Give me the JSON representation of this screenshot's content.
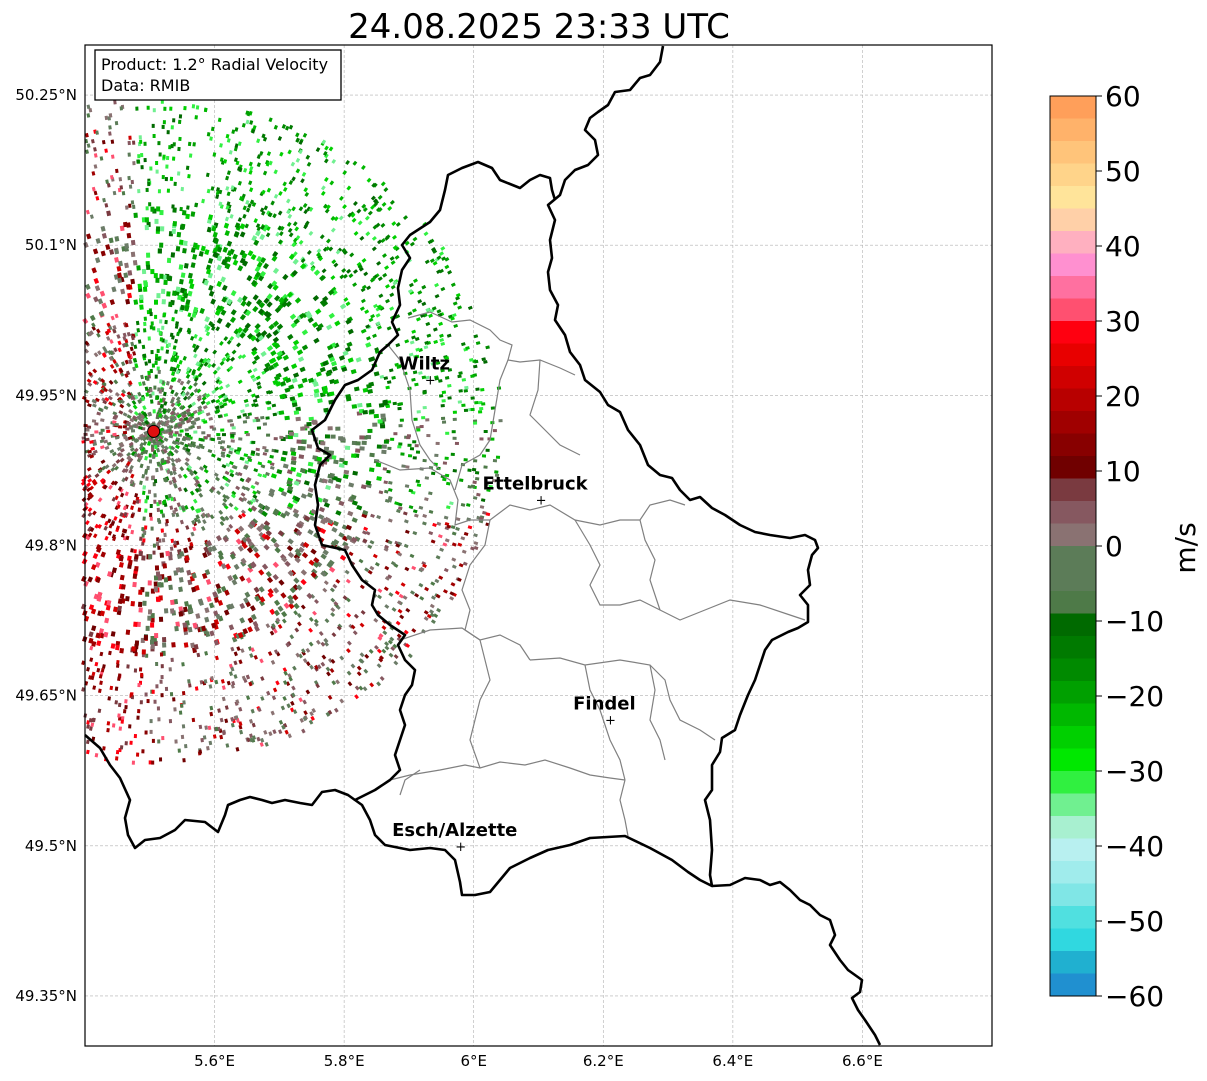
{
  "title": "24.08.2025 23:33 UTC",
  "info_box": {
    "line1": "Product: 1.2° Radial Velocity",
    "line2": "Data: RMIB"
  },
  "map": {
    "lon_range": [
      5.4,
      6.8
    ],
    "lat_range": [
      49.3,
      50.3
    ],
    "lon_ticks": [
      {
        "value": 5.6,
        "label": "5.6°E"
      },
      {
        "value": 5.8,
        "label": "5.8°E"
      },
      {
        "value": 6.0,
        "label": "6°E"
      },
      {
        "value": 6.2,
        "label": "6.2°E"
      },
      {
        "value": 6.4,
        "label": "6.4°E"
      },
      {
        "value": 6.6,
        "label": "6.6°E"
      }
    ],
    "lat_ticks": [
      {
        "value": 50.25,
        "label": "50.25°N"
      },
      {
        "value": 50.1,
        "label": "50.1°N"
      },
      {
        "value": 49.95,
        "label": "49.95°N"
      },
      {
        "value": 49.8,
        "label": "49.8°N"
      },
      {
        "value": 49.65,
        "label": "49.65°N"
      },
      {
        "value": 49.5,
        "label": "49.5°N"
      },
      {
        "value": 49.35,
        "label": "49.35°N"
      }
    ],
    "radar_site": {
      "lon": 5.506,
      "lat": 49.914
    },
    "cities": [
      {
        "name": "Wiltz",
        "lon": 5.933,
        "lat": 49.966
      },
      {
        "name": "Ettelbruck",
        "lon": 6.104,
        "lat": 49.846
      },
      {
        "name": "Findel",
        "lon": 6.211,
        "lat": 49.626
      },
      {
        "name": "Esch/Alzette",
        "lon": 5.98,
        "lat": 49.5
      }
    ],
    "grid": true
  },
  "colorbar": {
    "label": "m/s",
    "range": [
      -60,
      60
    ],
    "ticks": [
      {
        "value": 60,
        "label": "60"
      },
      {
        "value": 50,
        "label": "50"
      },
      {
        "value": 40,
        "label": "40"
      },
      {
        "value": 30,
        "label": "30"
      },
      {
        "value": 20,
        "label": "20"
      },
      {
        "value": 10,
        "label": "10"
      },
      {
        "value": 0,
        "label": "0"
      },
      {
        "value": -10,
        "label": "−10"
      },
      {
        "value": -20,
        "label": "−20"
      },
      {
        "value": -30,
        "label": "−30"
      },
      {
        "value": -40,
        "label": "−40"
      },
      {
        "value": -50,
        "label": "−50"
      },
      {
        "value": -60,
        "label": "−60"
      }
    ],
    "bands": [
      {
        "from": 57,
        "to": 60,
        "color": "#ff9f5a"
      },
      {
        "from": 54,
        "to": 57,
        "color": "#ffb26a"
      },
      {
        "from": 51,
        "to": 54,
        "color": "#ffc47a"
      },
      {
        "from": 48,
        "to": 51,
        "color": "#ffd48a"
      },
      {
        "from": 45,
        "to": 48,
        "color": "#ffe49a"
      },
      {
        "from": 42,
        "to": 45,
        "color": "#ffd0a8"
      },
      {
        "from": 39,
        "to": 42,
        "color": "#ffb0c0"
      },
      {
        "from": 36,
        "to": 39,
        "color": "#ff90d0"
      },
      {
        "from": 33,
        "to": 36,
        "color": "#ff70a0"
      },
      {
        "from": 30,
        "to": 33,
        "color": "#ff5070"
      },
      {
        "from": 27,
        "to": 30,
        "color": "#ff0010"
      },
      {
        "from": 24,
        "to": 27,
        "color": "#e80000"
      },
      {
        "from": 21,
        "to": 24,
        "color": "#d00000"
      },
      {
        "from": 18,
        "to": 21,
        "color": "#b80000"
      },
      {
        "from": 15,
        "to": 18,
        "color": "#a00000"
      },
      {
        "from": 12,
        "to": 15,
        "color": "#880000"
      },
      {
        "from": 9,
        "to": 12,
        "color": "#700000"
      },
      {
        "from": 6,
        "to": 9,
        "color": "#7a3a40"
      },
      {
        "from": 3,
        "to": 6,
        "color": "#865860"
      },
      {
        "from": 0,
        "to": 3,
        "color": "#8a7272"
      },
      {
        "from": -3,
        "to": 0,
        "color": "#6c7c68"
      },
      {
        "from": -6,
        "to": 0,
        "color": "#5c7c58"
      },
      {
        "from": -9,
        "to": -6,
        "color": "#4e7a48"
      },
      {
        "from": -12,
        "to": -9,
        "color": "#006a00"
      },
      {
        "from": -15,
        "to": -12,
        "color": "#007a00"
      },
      {
        "from": -18,
        "to": -15,
        "color": "#008a00"
      },
      {
        "from": -21,
        "to": -18,
        "color": "#00a000"
      },
      {
        "from": -24,
        "to": -21,
        "color": "#00b800"
      },
      {
        "from": -27,
        "to": -24,
        "color": "#00d000"
      },
      {
        "from": -30,
        "to": -27,
        "color": "#00e800"
      },
      {
        "from": -33,
        "to": -30,
        "color": "#30f040"
      },
      {
        "from": -36,
        "to": -33,
        "color": "#70f090"
      },
      {
        "from": -39,
        "to": -36,
        "color": "#a8f0d0"
      },
      {
        "from": -42,
        "to": -39,
        "color": "#b8f0f0"
      },
      {
        "from": -45,
        "to": -42,
        "color": "#a0ecec"
      },
      {
        "from": -48,
        "to": -45,
        "color": "#80e6e6"
      },
      {
        "from": -51,
        "to": -48,
        "color": "#50e0e0"
      },
      {
        "from": -54,
        "to": -51,
        "color": "#30d8e0"
      },
      {
        "from": -57,
        "to": -54,
        "color": "#20b0d0"
      },
      {
        "from": -60,
        "to": -57,
        "color": "#2090d0"
      }
    ]
  },
  "colors": {
    "radar_dot": "#e01010",
    "grid": "#b0b0b0",
    "border": "#000000",
    "cantons": "#808080"
  }
}
